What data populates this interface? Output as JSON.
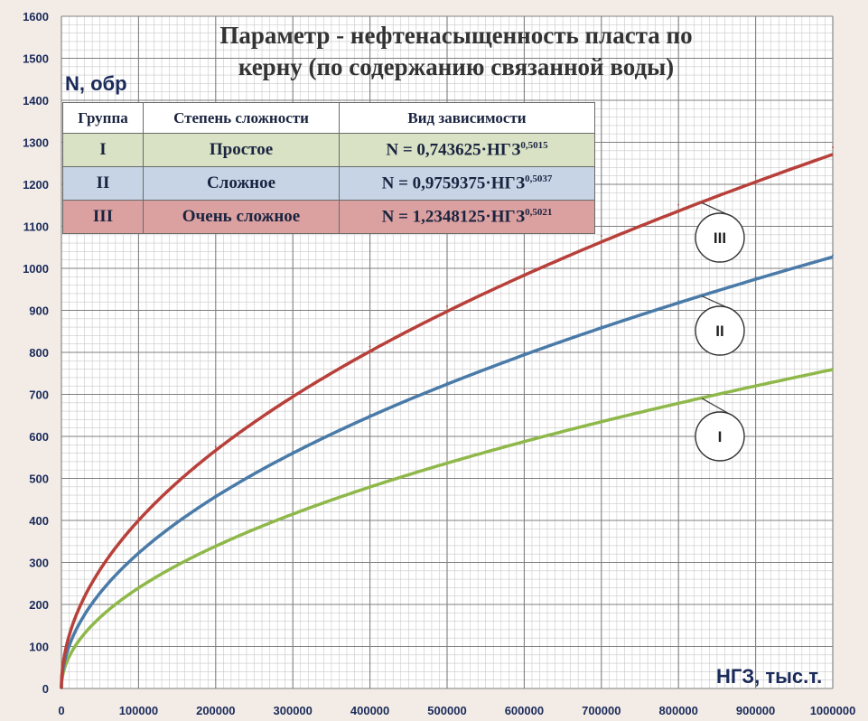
{
  "chart_data": {
    "type": "line",
    "title": "Параметр - нефтенасыщенность пласта по керну (по содержанию связанной воды)",
    "title_lines": [
      "Параметр - нефтенасыщенность пласта по",
      "керну (по содержанию связанной воды)"
    ],
    "xlabel": "НГЗ, тыс.т.",
    "ylabel": "N, обр",
    "xlim": [
      0,
      1000000
    ],
    "ylim": [
      0,
      1600
    ],
    "x_ticks": [
      "0",
      "100000",
      "200000",
      "300000",
      "400000",
      "500000",
      "600000",
      "700000",
      "800000",
      "900000",
      "1000000"
    ],
    "y_ticks": [
      "0",
      "100",
      "200",
      "300",
      "400",
      "500",
      "600",
      "700",
      "800",
      "900",
      "1000",
      "1100",
      "1200",
      "1300",
      "1400",
      "1500",
      "1600"
    ],
    "grid": true,
    "series": [
      {
        "name": "I",
        "color": "#8fb84a",
        "formula": {
          "a": 0.743625,
          "b": 0.5015
        },
        "x": [
          0,
          50000,
          100000,
          200000,
          300000,
          400000,
          500000,
          600000,
          700000,
          800000,
          900000,
          1000000
        ],
        "values": [
          0,
          169,
          239,
          338,
          415,
          479,
          536,
          587,
          634,
          678,
          719,
          758
        ]
      },
      {
        "name": "II",
        "color": "#4a7aa8",
        "formula": {
          "a": 0.9759375,
          "b": 0.5037
        },
        "x": [
          0,
          50000,
          100000,
          200000,
          300000,
          400000,
          500000,
          600000,
          700000,
          800000,
          900000,
          1000000
        ],
        "values": [
          0,
          230,
          325,
          460,
          564,
          652,
          729,
          799,
          863,
          923,
          979,
          1032
        ]
      },
      {
        "name": "III",
        "color": "#b8403a",
        "formula": {
          "a": 1.2348125,
          "b": 0.5021
        },
        "x": [
          0,
          50000,
          100000,
          200000,
          300000,
          400000,
          500000,
          600000,
          700000,
          800000,
          900000,
          1000000
        ],
        "values": [
          0,
          287,
          406,
          575,
          705,
          814,
          910,
          997,
          1077,
          1151,
          1221,
          1288
        ]
      }
    ]
  },
  "legend_table": {
    "headers": [
      "Группа",
      "Степень сложности",
      "Вид зависимости"
    ],
    "rows": [
      {
        "group": "I",
        "complexity": "Простое",
        "formula_base": "N = 0,743625·НГЗ",
        "formula_exp": "0,5015"
      },
      {
        "group": "II",
        "complexity": "Сложное",
        "formula_base": "N = 0,9759375·НГЗ",
        "formula_exp": "0,5037"
      },
      {
        "group": "III",
        "complexity": "Очень сложное",
        "formula_base": "N = 1,2348125·НГЗ",
        "formula_exp": "0,5021"
      }
    ]
  },
  "curve_labels": [
    "III",
    "II",
    "I"
  ]
}
